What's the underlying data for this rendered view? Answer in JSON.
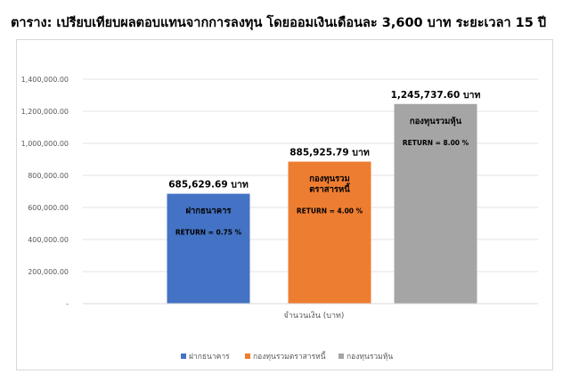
{
  "title": "ตาราง: เปรียบเทียบผลตอบแทนจากการลงทุน โดยออมเงินเดือนละ 3,600 บาท ระยะเวลา 15 ปี",
  "chart_data": {
    "type": "bar",
    "categories": [
      "ฝากธนาคาร",
      "กองทุนรวมตราสารหนี้",
      "กองทุนรวมหุ้น"
    ],
    "values": [
      685629.69,
      885925.79,
      1245737.6
    ],
    "data_labels": [
      "685,629.69 บาท",
      "885,925.79 บาท",
      "1,245,737.60 บาท"
    ],
    "bar_labels": [
      {
        "name_lines": [
          "ฝากธนาคาร"
        ],
        "return": "RETURN  =  0.75 %"
      },
      {
        "name_lines": [
          "กองทุนรวม",
          "ตราสารหนี้"
        ],
        "return": "RETURN  = 4.00 %"
      },
      {
        "name_lines": [
          "กองทุนรวมหุ้น"
        ],
        "return": "RETURN  = 8.00 %"
      }
    ],
    "colors": [
      "#4472c4",
      "#ed7d31",
      "#a5a5a5"
    ],
    "xlabel": "จำนวนเงิน (บาท)",
    "ylabel": "",
    "ylim": [
      0,
      1400000
    ],
    "yticks": [
      0,
      200000,
      400000,
      600000,
      800000,
      1000000,
      1200000,
      1400000
    ],
    "ytick_labels": [
      "-",
      "200,000.00",
      "400,000.00",
      "600,000.00",
      "800,000.00",
      "1,000,000.00",
      "1,200,000.00",
      "1,400,000.00"
    ],
    "grid": true,
    "legend": [
      "ฝากธนาคาร",
      "กองทุนรวมตราสารหนี้",
      "กองทุนรวมหุ้น"
    ],
    "legend_position": "bottom"
  }
}
